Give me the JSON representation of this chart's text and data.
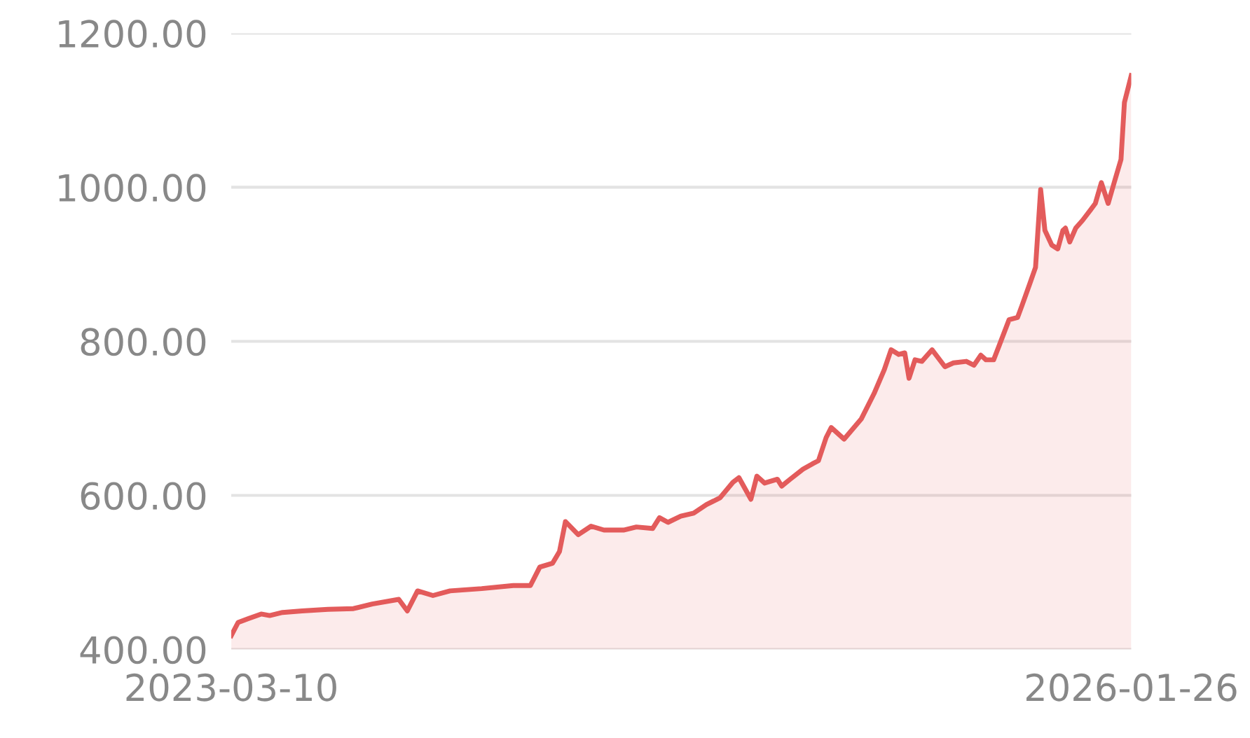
{
  "chart_data": {
    "type": "area",
    "color": "#e35b5b",
    "grid": "y",
    "ylim": [
      400,
      1200
    ],
    "yticks": [
      {
        "value": 400,
        "label": "400.00"
      },
      {
        "value": 600,
        "label": "600.00"
      },
      {
        "value": 800,
        "label": "800.00"
      },
      {
        "value": 1000,
        "label": "1000.00"
      },
      {
        "value": 1200,
        "label": "1200.00"
      }
    ],
    "xlim": [
      "2023-03-10",
      "2026-01-26"
    ],
    "xticks": [
      {
        "value": "2023-03-10",
        "label": "2023-03-10"
      },
      {
        "value": "2026-01-26",
        "label": "2026-01-26"
      }
    ],
    "x": [
      "2023-03-10",
      "2023-03-18",
      "2023-03-30",
      "2023-04-14",
      "2023-04-24",
      "2023-05-09",
      "2023-06-01",
      "2023-07-01",
      "2023-07-31",
      "2023-08-22",
      "2023-09-22",
      "2023-10-02",
      "2023-10-14",
      "2023-11-01",
      "2023-11-21",
      "2023-12-28",
      "2024-02-03",
      "2024-02-23",
      "2024-03-05",
      "2024-03-20",
      "2024-03-28",
      "2024-04-04",
      "2024-04-19",
      "2024-05-04",
      "2024-05-19",
      "2024-06-11",
      "2024-06-26",
      "2024-07-15",
      "2024-07-23",
      "2024-08-02",
      "2024-08-17",
      "2024-09-01",
      "2024-09-16",
      "2024-10-02",
      "2024-10-17",
      "2024-10-24",
      "2024-11-07",
      "2024-11-14",
      "2024-11-23",
      "2024-12-08",
      "2024-12-13",
      "2024-12-23",
      "2025-01-07",
      "2025-01-18",
      "2025-01-25",
      "2025-02-03",
      "2025-02-09",
      "2025-02-24",
      "2025-03-16",
      "2025-03-31",
      "2025-04-12",
      "2025-04-20",
      "2025-04-29",
      "2025-05-06",
      "2025-05-11",
      "2025-05-18",
      "2025-05-26",
      "2025-06-07",
      "2025-06-22",
      "2025-07-02",
      "2025-07-17",
      "2025-07-26",
      "2025-08-03",
      "2025-08-09",
      "2025-08-18",
      "2025-08-25",
      "2025-09-05",
      "2025-09-15",
      "2025-09-20",
      "2025-09-30",
      "2025-10-06",
      "2025-10-12",
      "2025-10-17",
      "2025-10-25",
      "2025-11-01",
      "2025-11-07",
      "2025-11-10",
      "2025-11-15",
      "2025-11-22",
      "2025-11-30",
      "2025-12-09",
      "2025-12-15",
      "2025-12-22",
      "2025-12-30",
      "2026-01-06",
      "2026-01-14",
      "2026-01-18",
      "2026-01-26"
    ],
    "values": [
      418,
      435,
      440,
      446,
      444,
      448,
      450,
      452,
      453,
      459,
      465,
      450,
      476,
      470,
      476,
      479,
      483,
      483,
      507,
      512,
      527,
      566,
      549,
      560,
      555,
      555,
      559,
      557,
      571,
      565,
      573,
      577,
      588,
      597,
      617,
      623,
      595,
      625,
      616,
      621,
      612,
      621,
      634,
      641,
      645,
      675,
      688,
      673,
      699,
      732,
      763,
      789,
      783,
      785,
      752,
      776,
      774,
      789,
      767,
      772,
      774,
      769,
      782,
      776,
      776,
      796,
      828,
      831,
      846,
      877,
      896,
      997,
      944,
      925,
      920,
      944,
      947,
      929,
      947,
      957,
      970,
      979,
      1006,
      979,
      1006,
      1036,
      1110,
      1145
    ]
  }
}
